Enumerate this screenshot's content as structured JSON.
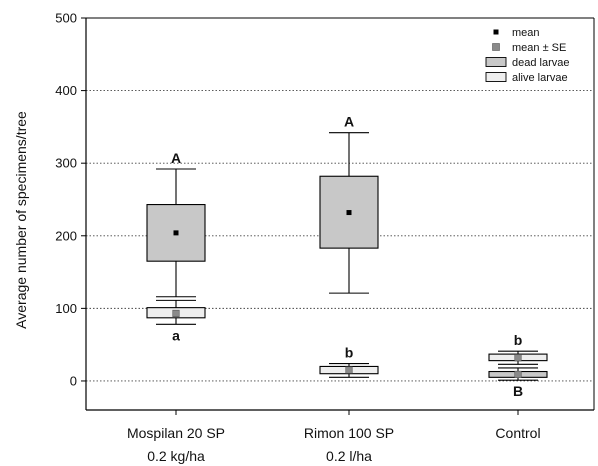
{
  "chart_data": {
    "type": "box",
    "ylabel": "Average number of specimens/tree",
    "ylim": [
      -40,
      500
    ],
    "yticks": [
      0,
      100,
      200,
      300,
      400,
      500
    ],
    "grid": "dotted horizontal",
    "legend_position": "top-right",
    "categories": [
      {
        "line1": "Mospilan 20 SP",
        "line2": "0.2 kg/ha"
      },
      {
        "line1": "Rimon 100 SP",
        "line2": "0.2 l/ha"
      },
      {
        "line1": "Control",
        "line2": ""
      }
    ],
    "legend": {
      "mean": "mean",
      "mean_se": "mean ± SE",
      "dead": "dead larvae",
      "alive": "alive larvae"
    },
    "colors": {
      "dead": "#c8c8c8",
      "alive": "#eeeeee",
      "mean": "#000000",
      "mean_se": "#8a8a8a"
    },
    "series": [
      {
        "key": "dead",
        "boxes": [
          {
            "mean": 204,
            "box_low": 165,
            "box_high": 243,
            "whisker_low": 116,
            "whisker_high": 292,
            "mean_marker": "mean",
            "label": "A",
            "label_pos": "above"
          },
          {
            "mean": 232,
            "box_low": 183,
            "box_high": 282,
            "whisker_low": 121,
            "whisker_high": 342,
            "mean_marker": "mean",
            "label": "A",
            "label_pos": "above"
          },
          {
            "mean": 9,
            "box_low": 5,
            "box_high": 13,
            "whisker_low": 1,
            "whisker_high": 18,
            "mean_marker": "mean_se",
            "label": "B",
            "label_pos": "below"
          }
        ]
      },
      {
        "key": "alive",
        "boxes": [
          {
            "mean": 93,
            "box_low": 87,
            "box_high": 101,
            "whisker_low": 78,
            "whisker_high": 111,
            "mean_marker": "mean_se",
            "label": "a",
            "label_pos": "below"
          },
          {
            "mean": 15,
            "box_low": 10,
            "box_high": 20,
            "whisker_low": 5,
            "whisker_high": 24,
            "mean_marker": "mean_se",
            "label": "b",
            "label_pos": "above"
          },
          {
            "mean": 32,
            "box_low": 28,
            "box_high": 37,
            "whisker_low": 23,
            "whisker_high": 41,
            "mean_marker": "mean_se",
            "label": "b",
            "label_pos": "above"
          }
        ]
      }
    ]
  }
}
